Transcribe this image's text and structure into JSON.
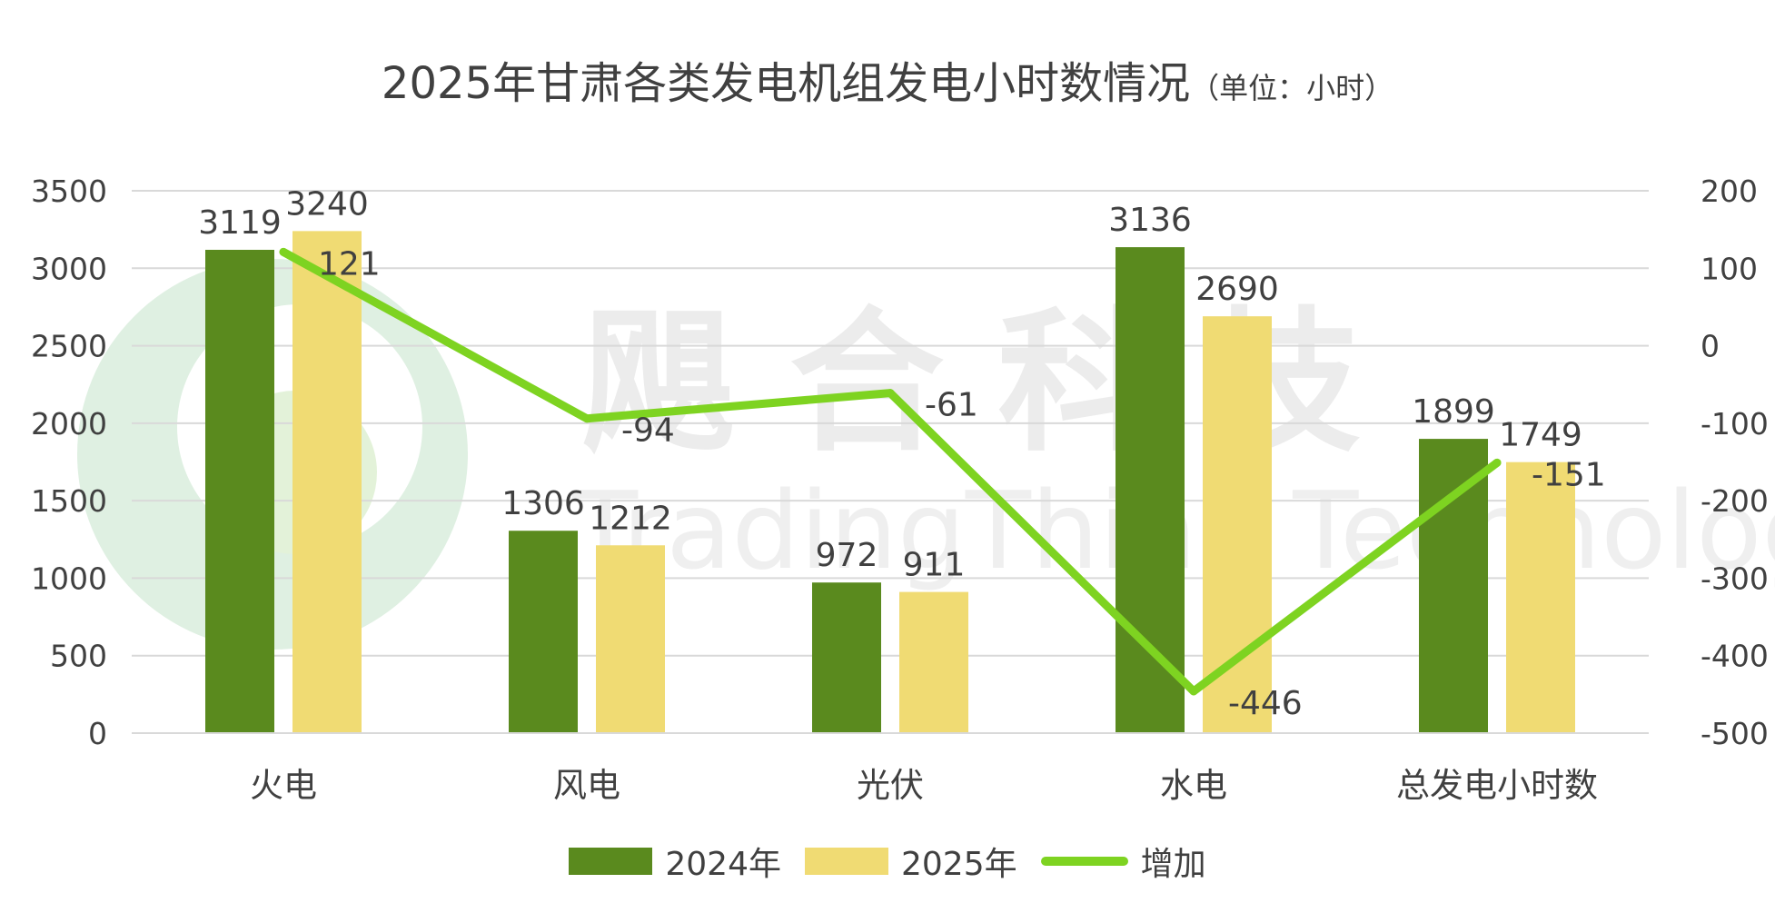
{
  "colors": {
    "series_2024": "#5a8a1e",
    "series_2025": "#f0db73",
    "series_increase": "#7ed321",
    "grid": "#d9d9d9",
    "text": "#404040",
    "watermark": "#e6f1e6"
  },
  "watermark": {
    "chinese": "飓 合 科 技",
    "english": "TradingThink Technology"
  },
  "chart_data": {
    "type": "bar",
    "title": "2025年甘肃各类发电机组发电小时数情况",
    "unit": "（单位：小时）",
    "categories": [
      "火电",
      "风电",
      "光伏",
      "水电",
      "总发电小时数"
    ],
    "series": [
      {
        "name": "2024年",
        "type": "bar",
        "axis": "left",
        "values": [
          3119,
          1306,
          972,
          3136,
          1899
        ]
      },
      {
        "name": "2025年",
        "type": "bar",
        "axis": "left",
        "values": [
          3240,
          1212,
          911,
          2690,
          1749
        ]
      },
      {
        "name": "增加",
        "type": "line",
        "axis": "right",
        "values": [
          121,
          -94,
          -61,
          -446,
          -151
        ]
      }
    ],
    "y_left": {
      "ylim": [
        0,
        3500
      ],
      "ticks": [
        "0",
        "500",
        "1000",
        "1500",
        "2000",
        "2500",
        "3000",
        "3500"
      ]
    },
    "y_right": {
      "ylim": [
        -500,
        200
      ],
      "ticks": [
        "-500",
        "-400",
        "-300",
        "-200",
        "-100",
        "0",
        "100",
        "200"
      ]
    },
    "grid": true,
    "legend_position": "bottom"
  }
}
